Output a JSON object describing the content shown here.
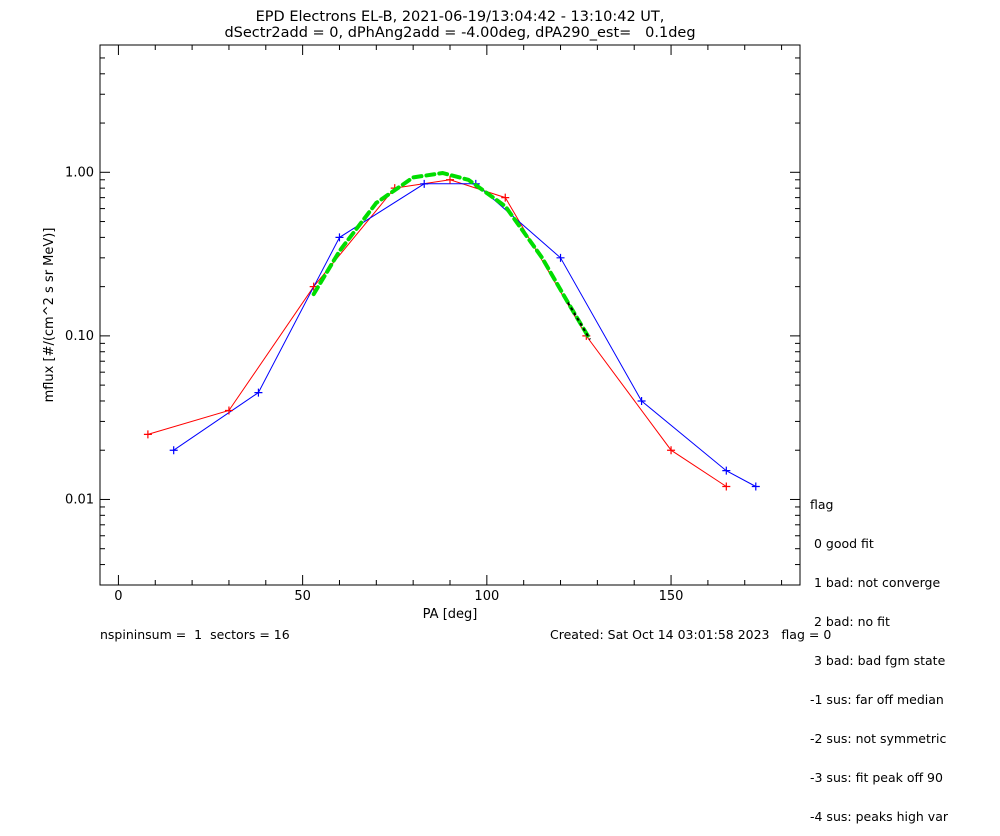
{
  "header": {
    "title_line1": "EPD Electrons EL-B, 2021-06-19/13:04:42 - 13:10:42 UT,",
    "title_line2": "dSectr2add = 0, dPhAng2add = -4.00deg, dPA290_est=   0.1deg"
  },
  "footer": {
    "left": "nspininsum =  1  sectors = 16",
    "right": "Created: Sat Oct 14 03:01:58 2023   flag = 0"
  },
  "legend": {
    "title": "flag",
    "items": [
      " 0 good fit",
      " 1 bad: not converge",
      " 2 bad: no fit",
      " 3 bad: bad fgm state",
      "-1 sus: far off median",
      "-2 sus: not symmetric",
      "-3 sus: fit peak off 90",
      "-4 sus: peaks high var"
    ]
  },
  "colors": {
    "series_a": "#ff0000",
    "series_b": "#0000ff",
    "fit": "#00dd00",
    "fit_extension": "#000000"
  },
  "chart_data": {
    "type": "line",
    "title": "EPD Electrons EL-B, 2021-06-19/13:04:42 - 13:10:42 UT, dSectr2add = 0, dPhAng2add = -4.00deg, dPA290_est=   0.1deg",
    "xlabel": "PA [deg]",
    "ylabel": "mflux [#/(cm^2 s sr MeV)]",
    "xlim": [
      -5,
      185
    ],
    "ylim": [
      0.003,
      6
    ],
    "yscale": "log",
    "xticks": [
      0,
      50,
      100,
      150
    ],
    "xtick_labels": [
      "0",
      "50",
      "100",
      "150"
    ],
    "yticks": [
      0.01,
      0.1,
      1.0
    ],
    "ytick_labels": [
      "0.01",
      "0.10",
      "1.00"
    ],
    "grid": false,
    "legend_position": "right",
    "series": [
      {
        "color": "red",
        "x": [
          8,
          30,
          53,
          75,
          90,
          105,
          127,
          150,
          165
        ],
        "y": [
          0.025,
          0.035,
          0.2,
          0.8,
          0.9,
          0.7,
          0.1,
          0.02,
          0.012
        ]
      },
      {
        "color": "blue",
        "x": [
          15,
          38,
          60,
          83,
          97,
          120,
          142,
          165,
          173
        ],
        "y": [
          0.02,
          0.045,
          0.4,
          0.85,
          0.85,
          0.3,
          0.04,
          0.015,
          0.012
        ]
      }
    ],
    "fit": {
      "color": "green",
      "style": "dashed",
      "x": [
        53,
        60,
        70,
        80,
        88,
        95,
        105,
        115,
        122,
        128
      ],
      "y": [
        0.18,
        0.33,
        0.65,
        0.93,
        0.99,
        0.9,
        0.62,
        0.3,
        0.16,
        0.095
      ]
    },
    "fit_extension": {
      "color": "black",
      "x": [
        122,
        128
      ],
      "y": [
        0.16,
        0.095
      ]
    }
  }
}
